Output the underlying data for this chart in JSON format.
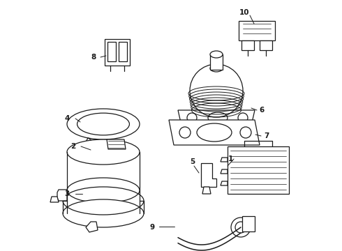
{
  "background_color": "#ffffff",
  "line_color": "#1a1a1a",
  "fig_width": 4.9,
  "fig_height": 3.6,
  "dpi": 100,
  "label_fontsize": 7.5,
  "lw": 0.9
}
